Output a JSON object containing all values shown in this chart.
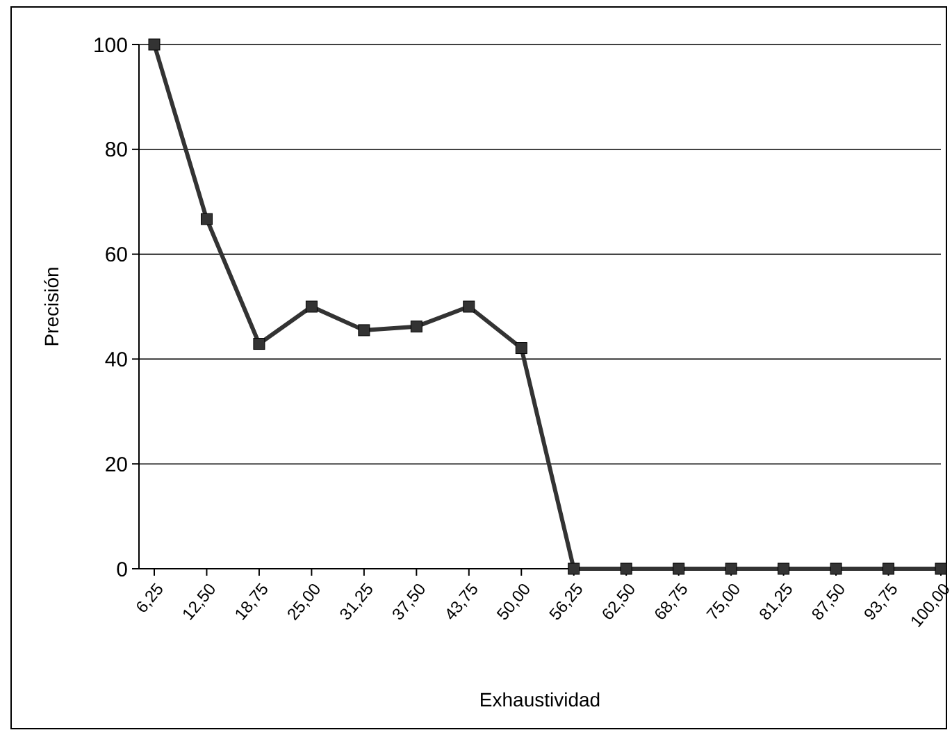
{
  "chart_data": {
    "type": "line",
    "xlabel": "Exhaustividad",
    "ylabel": "Precisión",
    "categories": [
      "6,25",
      "12,50",
      "18,75",
      "25,00",
      "31,25",
      "37,50",
      "43,75",
      "50,00",
      "56,25",
      "62,50",
      "68,75",
      "75,00",
      "81,25",
      "87,50",
      "93,75",
      "100,00"
    ],
    "series": [
      {
        "color": "#333333",
        "values": [
          100,
          66.7,
          42.9,
          50,
          45.5,
          46.2,
          50,
          42.1,
          0,
          0,
          0,
          0,
          0,
          0,
          0,
          0
        ]
      }
    ],
    "ylim": [
      0,
      100
    ],
    "yticks": [
      0,
      20,
      40,
      60,
      80,
      100
    ],
    "grid": "y",
    "marker": "square",
    "line_style": "solid"
  }
}
